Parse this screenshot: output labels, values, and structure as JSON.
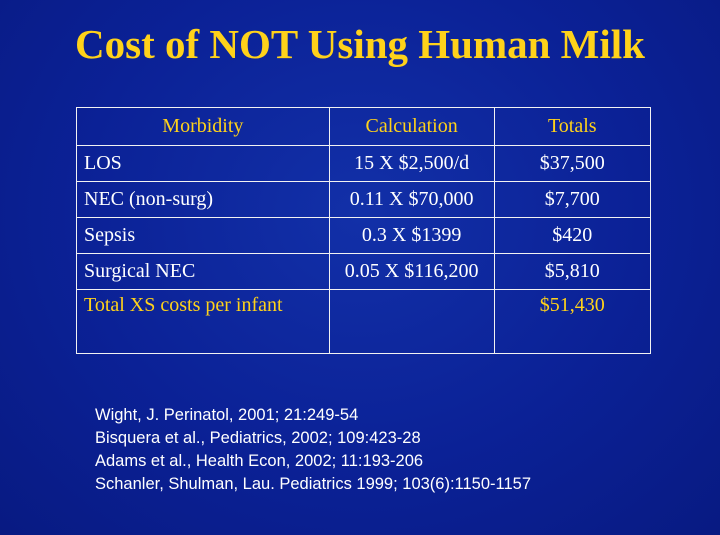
{
  "slide": {
    "title": "Cost of NOT Using Human Milk",
    "background_color": "#0b2196",
    "accent_color": "#ffd21a"
  },
  "table": {
    "headers": [
      "Morbidity",
      "Calculation",
      "Totals"
    ],
    "rows": [
      {
        "morbidity": "LOS",
        "calculation": "15 X $2,500/d",
        "total": "$37,500"
      },
      {
        "morbidity": "NEC (non-surg)",
        "calculation": "0.11 X $70,000",
        "total": "$7,700"
      },
      {
        "morbidity": "Sepsis",
        "calculation": "0.3 X $1399",
        "total": "$420"
      },
      {
        "morbidity": "Surgical NEC",
        "calculation": "0.05 X $116,200",
        "total": "$5,810"
      }
    ],
    "total_row": {
      "label": "Total XS costs per infant",
      "calculation": "",
      "total": "$51,430"
    }
  },
  "references": [
    "Wight, J. Perinatol, 2001; 21:249-54",
    "Bisquera et al., Pediatrics, 2002; 109:423-28",
    "Adams et al., Health Econ, 2002; 11:193-206",
    "Schanler, Shulman, Lau. Pediatrics 1999; 103(6):1150-1157"
  ]
}
